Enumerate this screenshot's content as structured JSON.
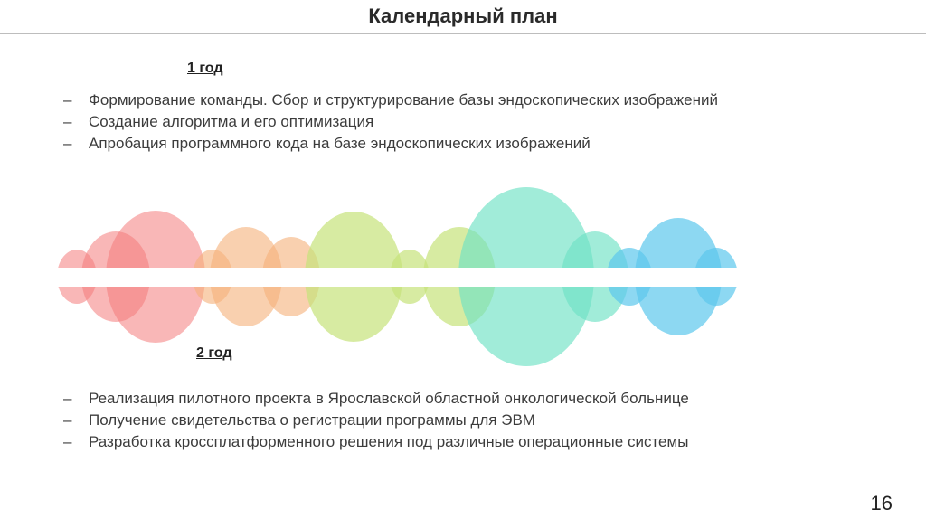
{
  "title": "Календарный план",
  "year1": {
    "heading": "1 год",
    "items": [
      {
        "marker": "–",
        "text": "Формирование команды. Сбор и структурирование базы эндоскопических изображений"
      },
      {
        "marker": "–",
        "text": "Создание алгоритма и его оптимизация"
      },
      {
        "marker": "–",
        "text": "Апробация программного кода на базе эндоскопических изображений"
      }
    ]
  },
  "year2": {
    "heading": "2 год",
    "items": [
      {
        "marker": "–",
        "text": "Реализация пилотного проекта в Ярославской областной онкологической больнице"
      },
      {
        "marker": "–",
        "text": "Получение свидетельства о регистрации программы для ЭВМ"
      },
      {
        "marker": "–",
        "text": "Разработка кроссплатформенного решения под различные операционные системы"
      }
    ]
  },
  "decoration": {
    "band_color": "#ffffff",
    "palette": [
      "#f47c7c",
      "#f5b07a",
      "#c6e27a",
      "#6ee2c4",
      "#5cc8ec"
    ]
  },
  "page_number": "16"
}
